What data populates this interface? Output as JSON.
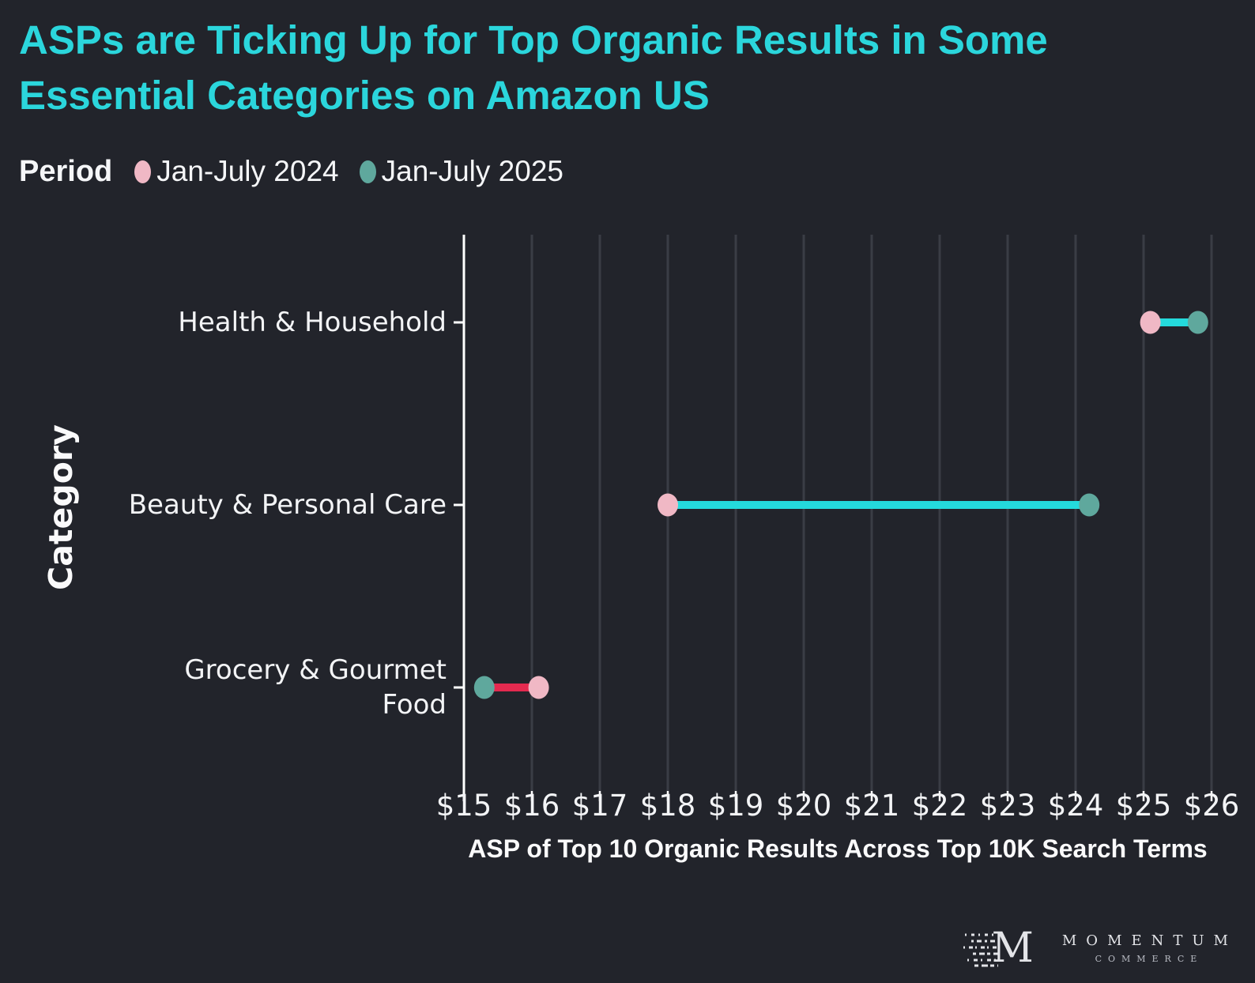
{
  "title": {
    "line1": "ASPs are Ticking Up for Top Organic Results in Some",
    "line2": "Essential Categories on Amazon US"
  },
  "legend": {
    "label": "Period",
    "items": [
      {
        "label": "Jan-July 2024",
        "color": "#F0B8C5"
      },
      {
        "label": "Jan-July 2025",
        "color": "#5FA89D"
      }
    ]
  },
  "chart_data": {
    "type": "scatter",
    "subtype": "dumbbell",
    "orientation": "horizontal",
    "title": "ASPs are Ticking Up for Top Organic Results in Some Essential Categories on Amazon US",
    "categories": [
      "Health & Household",
      "Beauty & Personal Care",
      "Grocery & Gourmet\nFood"
    ],
    "series": [
      {
        "name": "Jan-July 2024",
        "color": "#F0B8C5",
        "values": [
          25.1,
          18.0,
          16.1
        ]
      },
      {
        "name": "Jan-July 2025",
        "color": "#5FA89D",
        "values": [
          25.8,
          24.2,
          15.3
        ]
      }
    ],
    "xlabel": "ASP of Top 10 Organic Results Across Top 10K Search Terms",
    "ylabel": "Category",
    "xlim": [
      15,
      26
    ],
    "x_ticks": [
      15,
      16,
      17,
      18,
      19,
      20,
      21,
      22,
      23,
      24,
      25,
      26
    ],
    "x_tick_prefix": "$",
    "grid": "vertical",
    "legend_position": "top-left",
    "connector_increase_color": "#24DADC",
    "connector_decrease_color": "#E42A4F"
  },
  "colors": {
    "background": "#22242B",
    "title_accent": "#2BD6DC",
    "gridline": "#3A3D45",
    "axis": "#FFFFFF",
    "text": "#F3F4F6"
  },
  "branding": {
    "monogram": "M",
    "name": "MOMENTUM",
    "sub": "COMMERCE"
  }
}
